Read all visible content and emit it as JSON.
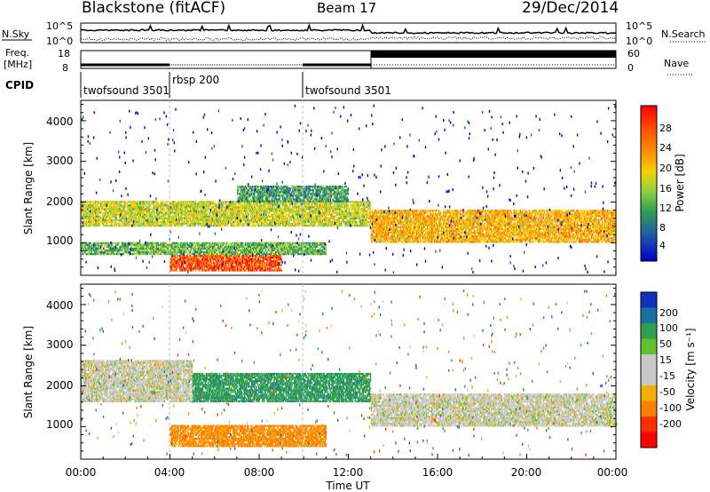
{
  "header": {
    "station": "Blackstone (fitACF)",
    "beam": "Beam 17",
    "date": "29/Dec/2014"
  },
  "noise_panel": {
    "left_label": "N.Sky",
    "right_label": "N.Search",
    "left_ticks": [
      "10^5",
      "10^0"
    ],
    "right_ticks": [
      "10^5",
      "10^0"
    ]
  },
  "freq_panel": {
    "left_label_1": "Freq.",
    "left_label_2": "[MHz]",
    "left_ticks": [
      "18",
      "8"
    ],
    "right_label": "Nave",
    "right_ticks": [
      "60",
      "0"
    ]
  },
  "cpid": {
    "label": "CPID",
    "modes": [
      {
        "name": "twofsound 3501",
        "start_h": 0,
        "end_h": 4
      },
      {
        "name": "rbsp 200",
        "start_h": 4,
        "end_h": 10
      },
      {
        "name": "twofsound 3501",
        "start_h": 10,
        "end_h": 24
      }
    ]
  },
  "power_panel": {
    "ylabel": "Slant Range [km]",
    "yticks": [
      "4000",
      "3000",
      "2000",
      "1000"
    ],
    "colorbar_label": "Power [dB]",
    "colorbar_ticks": [
      "28",
      "24",
      "20",
      "16",
      "12",
      "8",
      "4"
    ],
    "colorbar_colors": [
      "#ff0000",
      "#ff4000",
      "#ff8000",
      "#ffb000",
      "#f0e000",
      "#a0d840",
      "#30b030",
      "#208060",
      "#2050a0",
      "#0000c0"
    ]
  },
  "velocity_panel": {
    "ylabel": "Slant Range [km]",
    "yticks": [
      "4000",
      "3000",
      "2000",
      "1000"
    ],
    "colorbar_label": "Velocity [m s⁻¹]",
    "colorbar_ticks": [
      "200",
      "100",
      "50",
      "15",
      "-15",
      "-50",
      "-100",
      "-200"
    ],
    "colorbar_colors": [
      "#1030c0",
      "#1870a0",
      "#30a050",
      "#60c030",
      "#c8c8c8",
      "#c8c8c8",
      "#f0b000",
      "#ff8000",
      "#ff3000",
      "#ff0000"
    ]
  },
  "time_axis": {
    "ticks": [
      "00:00",
      "04:00",
      "08:00",
      "12:00",
      "16:00",
      "20:00",
      "00:00"
    ],
    "label": "Time UT"
  },
  "chart_data": [
    {
      "type": "heatmap",
      "title": "Power",
      "xlabel": "Time UT",
      "ylabel": "Slant Range [km]",
      "xlim_hours": [
        0,
        24
      ],
      "ylim_km": [
        200,
        4500
      ],
      "colorbar": {
        "label": "Power [dB]",
        "range": [
          0,
          30
        ]
      },
      "bands": [
        {
          "t0": 0,
          "t1": 13,
          "r0": 1400,
          "r1": 2000,
          "value": 18
        },
        {
          "t0": 4,
          "t1": 9,
          "r0": 300,
          "r1": 700,
          "value": 28
        },
        {
          "t0": 0,
          "t1": 11,
          "r0": 700,
          "r1": 1000,
          "value": 14
        },
        {
          "t0": 13,
          "t1": 24,
          "r0": 1000,
          "r1": 1800,
          "value": 22
        },
        {
          "t0": 7,
          "t1": 12,
          "r0": 2000,
          "r1": 2400,
          "value": 12
        }
      ]
    },
    {
      "type": "heatmap",
      "title": "Velocity",
      "xlabel": "Time UT",
      "ylabel": "Slant Range [km]",
      "xlim_hours": [
        0,
        24
      ],
      "ylim_km": [
        200,
        4500
      ],
      "colorbar": {
        "label": "Velocity [m s⁻¹]",
        "range": [
          -200,
          200
        ]
      },
      "bands": [
        {
          "t0": 0,
          "t1": 5,
          "r0": 1600,
          "r1": 2600,
          "value": 0
        },
        {
          "t0": 4,
          "t1": 11,
          "r0": 500,
          "r1": 1000,
          "value": -60
        },
        {
          "t0": 5,
          "t1": 13,
          "r0": 1600,
          "r1": 2300,
          "value": 60
        },
        {
          "t0": 13,
          "t1": 24,
          "r0": 1000,
          "r1": 1800,
          "value": 0
        }
      ]
    }
  ]
}
